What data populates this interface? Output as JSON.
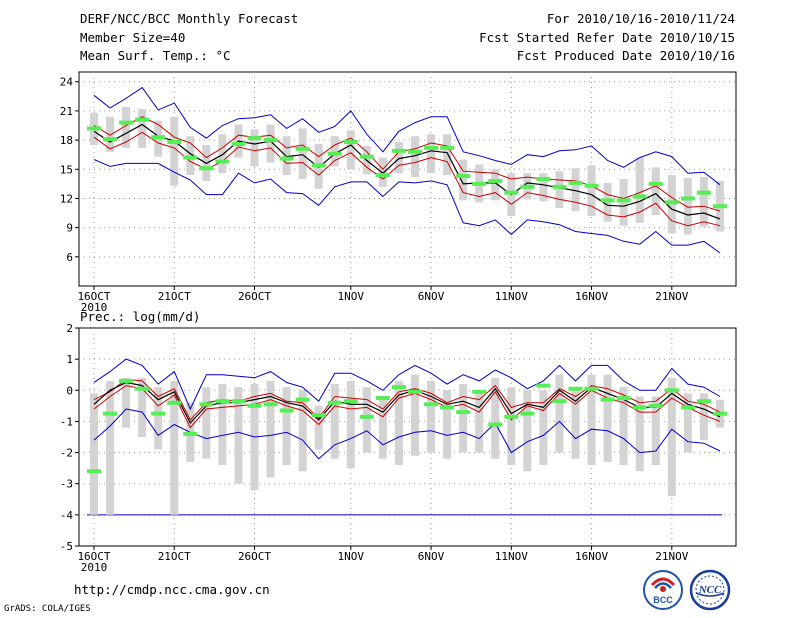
{
  "header": {
    "title": "DERF/NCC/BCC Monthly Forecast",
    "member_size": "Member Size=40",
    "variable": "Mean Surf. Temp.: °C",
    "period": "For 2010/10/16-2010/11/24",
    "start_date": "Fcst Started Refer Date 2010/10/15",
    "produced_date": "Fcst Produced Date 2010/10/16"
  },
  "precip_label": "Prec.: log(mm/d)",
  "footer": {
    "url": "http://cmdp.ncc.cma.gov.cn",
    "credit": "GrADS: COLA/IGES",
    "logo_bcc": "BCC",
    "logo_ncc": "NCC"
  },
  "colors": {
    "ensemble_max_min": "#0000cc",
    "quartile_band": "#cc0000",
    "median": "#000000",
    "member_box": "#d3d3d3",
    "marker": "#55ee55",
    "grid": "#9a9a9a",
    "baseline": "#0000cc"
  },
  "chart_data": [
    {
      "type": "line",
      "title": "Mean Surf. Temp.: °C",
      "ylabel": "°C",
      "ylim": [
        3,
        25
      ],
      "yticks": [
        6,
        9,
        12,
        15,
        18,
        21,
        24
      ],
      "xticks": [
        {
          "day": 1,
          "label": "16OCT",
          "sub": "2010"
        },
        {
          "day": 6,
          "label": "21OCT"
        },
        {
          "day": 11,
          "label": "26OCT"
        },
        {
          "day": 17,
          "label": "1NOV"
        },
        {
          "day": 22,
          "label": "6NOV"
        },
        {
          "day": 27,
          "label": "11NOV"
        },
        {
          "day": 32,
          "label": "16NOV"
        },
        {
          "day": 37,
          "label": "21NOV"
        }
      ],
      "x_days": [
        1,
        2,
        3,
        4,
        5,
        6,
        7,
        8,
        9,
        10,
        11,
        12,
        13,
        14,
        15,
        16,
        17,
        18,
        19,
        20,
        21,
        22,
        23,
        24,
        25,
        26,
        27,
        28,
        29,
        30,
        31,
        32,
        33,
        34,
        35,
        36,
        37,
        38,
        39,
        40
      ],
      "series": [
        {
          "name": "max",
          "values": [
            22.6,
            21.3,
            22.3,
            23.4,
            21.1,
            21.8,
            19.3,
            18.2,
            19.5,
            20.2,
            20.3,
            20.6,
            19.2,
            20.2,
            18.8,
            19.4,
            21.0,
            18.6,
            16.8,
            18.9,
            19.8,
            20.4,
            20.4,
            16.8,
            16.4,
            15.9,
            15.5,
            16.5,
            16.3,
            16.9,
            17.0,
            17.4,
            15.9,
            15.2,
            16.2,
            16.8,
            16.3,
            14.6,
            14.7,
            13.4
          ]
        },
        {
          "name": "upper_quartile",
          "values": [
            19.5,
            18.5,
            19.5,
            20.4,
            19.6,
            18.3,
            17.7,
            16.2,
            17.2,
            18.5,
            18.3,
            18.5,
            17.2,
            17.5,
            16.3,
            17.5,
            18.2,
            16.8,
            15.0,
            16.8,
            17.1,
            17.7,
            17.4,
            14.8,
            14.7,
            14.6,
            14.0,
            14.2,
            14.0,
            13.9,
            13.8,
            13.3,
            12.4,
            12.0,
            12.6,
            13.3,
            12.1,
            11.1,
            11.2,
            10.7
          ]
        },
        {
          "name": "median",
          "values": [
            18.9,
            17.8,
            18.7,
            19.6,
            18.4,
            17.9,
            16.6,
            15.6,
            16.5,
            17.9,
            17.6,
            17.9,
            16.3,
            16.5,
            15.2,
            16.6,
            17.5,
            15.9,
            14.6,
            16.1,
            16.4,
            16.9,
            16.7,
            13.5,
            13.6,
            13.6,
            12.4,
            13.6,
            13.4,
            13.1,
            12.8,
            12.4,
            11.3,
            11.2,
            11.7,
            12.5,
            10.9,
            10.3,
            10.5,
            9.9
          ]
        },
        {
          "name": "lower_quartile",
          "values": [
            18.3,
            17.1,
            17.8,
            18.8,
            17.7,
            17.2,
            15.8,
            15.0,
            15.8,
            17.3,
            16.9,
            17.2,
            15.6,
            15.7,
            14.4,
            15.9,
            16.7,
            15.2,
            14.0,
            15.4,
            15.7,
            16.2,
            15.8,
            12.6,
            12.2,
            12.6,
            11.4,
            12.6,
            12.3,
            11.9,
            11.6,
            11.2,
            10.3,
            10.1,
            10.6,
            11.5,
            9.7,
            9.2,
            9.6,
            9.2
          ]
        },
        {
          "name": "min",
          "values": [
            16.0,
            15.3,
            15.6,
            15.6,
            15.6,
            14.7,
            13.9,
            12.4,
            12.4,
            14.6,
            13.6,
            14.0,
            12.6,
            12.5,
            11.3,
            13.2,
            13.7,
            13.7,
            12.2,
            13.7,
            13.6,
            13.8,
            13.4,
            9.5,
            9.2,
            9.8,
            8.3,
            9.8,
            9.6,
            9.3,
            8.6,
            8.4,
            8.2,
            7.6,
            7.3,
            8.6,
            7.2,
            7.2,
            7.6,
            6.4
          ]
        },
        {
          "name": "box_top",
          "values": [
            20.8,
            20.4,
            21.4,
            21.2,
            20.0,
            20.4,
            18.4,
            17.5,
            18.6,
            19.6,
            19.1,
            19.6,
            18.4,
            19.2,
            17.6,
            18.4,
            19.0,
            17.4,
            16.2,
            17.8,
            18.4,
            18.6,
            18.6,
            16.0,
            15.5,
            15.0,
            14.6,
            14.6,
            14.6,
            14.8,
            15.1,
            15.4,
            13.6,
            14.0,
            16.2,
            15.2,
            14.4,
            14.1,
            14.2,
            13.8
          ]
        },
        {
          "name": "box_bottom",
          "values": [
            17.5,
            16.8,
            17.2,
            17.2,
            16.3,
            13.3,
            14.4,
            13.8,
            14.6,
            16.2,
            15.3,
            15.7,
            14.4,
            14.0,
            13.0,
            15.3,
            15.0,
            14.5,
            13.2,
            14.6,
            14.2,
            14.6,
            14.4,
            11.8,
            11.6,
            11.8,
            10.2,
            11.9,
            11.7,
            11.0,
            10.7,
            10.2,
            9.6,
            9.2,
            9.5,
            10.3,
            8.4,
            8.3,
            9.1,
            8.6
          ]
        },
        {
          "name": "markers",
          "values": [
            19.2,
            18.1,
            19.8,
            20.1,
            18.3,
            17.8,
            16.2,
            15.1,
            15.8,
            17.6,
            18.2,
            18.0,
            16.1,
            17.1,
            15.4,
            16.6,
            17.8,
            16.3,
            14.4,
            16.9,
            16.8,
            17.2,
            17.2,
            14.3,
            13.5,
            13.8,
            12.6,
            13.2,
            14.0,
            13.2,
            13.6,
            13.3,
            11.8,
            11.8,
            12.2,
            13.5,
            11.6,
            12.0,
            12.6,
            11.2
          ]
        }
      ]
    },
    {
      "type": "line",
      "title": "Prec.: log(mm/d)",
      "ylabel": "log(mm/d)",
      "ylim": [
        -5,
        2
      ],
      "yticks": [
        -5,
        -4,
        -3,
        -2,
        -1,
        0,
        1,
        2
      ],
      "xticks": [
        {
          "day": 1,
          "label": "16OCT",
          "sub": "2010"
        },
        {
          "day": 6,
          "label": "21OCT"
        },
        {
          "day": 11,
          "label": "26OCT"
        },
        {
          "day": 17,
          "label": "1NOV"
        },
        {
          "day": 22,
          "label": "6NOV"
        },
        {
          "day": 27,
          "label": "11NOV"
        },
        {
          "day": 32,
          "label": "16NOV"
        },
        {
          "day": 37,
          "label": "21NOV"
        }
      ],
      "x_days": [
        1,
        2,
        3,
        4,
        5,
        6,
        7,
        8,
        9,
        10,
        11,
        12,
        13,
        14,
        15,
        16,
        17,
        18,
        19,
        20,
        21,
        22,
        23,
        24,
        25,
        26,
        27,
        28,
        29,
        30,
        31,
        32,
        33,
        34,
        35,
        36,
        37,
        38,
        39,
        40
      ],
      "baseline": -4,
      "series": [
        {
          "name": "max",
          "values": [
            0.25,
            0.6,
            1.0,
            0.8,
            0.2,
            0.6,
            -0.6,
            0.5,
            0.5,
            0.45,
            0.4,
            0.6,
            0.25,
            0.1,
            -0.35,
            0.55,
            0.55,
            0.3,
            0.0,
            0.5,
            0.8,
            0.55,
            0.2,
            0.5,
            0.3,
            0.65,
            0.4,
            0.05,
            0.3,
            0.8,
            0.3,
            0.8,
            0.8,
            0.3,
            0.0,
            0.0,
            0.7,
            0.2,
            0.1,
            -0.2
          ]
        },
        {
          "name": "upper_quartile",
          "values": [
            -0.3,
            -0.05,
            0.35,
            0.3,
            -0.2,
            0.05,
            -0.95,
            -0.4,
            -0.3,
            -0.35,
            -0.2,
            -0.1,
            -0.35,
            -0.4,
            -0.9,
            -0.2,
            -0.25,
            -0.3,
            -0.6,
            -0.05,
            0.05,
            -0.1,
            -0.4,
            -0.2,
            -0.3,
            0.15,
            -0.55,
            -0.4,
            -0.4,
            0.05,
            -0.2,
            0.15,
            0.05,
            -0.15,
            -0.4,
            -0.35,
            0.05,
            -0.35,
            -0.45,
            -0.7
          ]
        },
        {
          "name": "median",
          "values": [
            -0.45,
            0.0,
            0.25,
            0.15,
            -0.3,
            -0.05,
            -1.05,
            -0.5,
            -0.4,
            -0.4,
            -0.3,
            -0.2,
            -0.4,
            -0.5,
            -0.95,
            -0.35,
            -0.45,
            -0.45,
            -0.7,
            -0.15,
            0.0,
            -0.2,
            -0.45,
            -0.35,
            -0.55,
            0.05,
            -0.75,
            -0.45,
            -0.55,
            0.0,
            -0.35,
            0.1,
            -0.1,
            -0.3,
            -0.55,
            -0.55,
            -0.1,
            -0.45,
            -0.6,
            -0.85
          ]
        },
        {
          "name": "lower_quartile",
          "values": [
            -0.6,
            -0.2,
            0.15,
            0.05,
            -0.5,
            -0.15,
            -1.2,
            -0.6,
            -0.55,
            -0.5,
            -0.45,
            -0.3,
            -0.5,
            -0.65,
            -1.1,
            -0.5,
            -0.6,
            -0.55,
            -0.85,
            -0.25,
            -0.1,
            -0.3,
            -0.55,
            -0.45,
            -0.7,
            -0.05,
            -0.95,
            -0.5,
            -0.65,
            -0.1,
            -0.45,
            0.0,
            -0.25,
            -0.4,
            -0.7,
            -0.7,
            -0.25,
            -0.55,
            -0.8,
            -1.0
          ]
        },
        {
          "name": "min",
          "values": [
            -1.6,
            -1.15,
            -0.6,
            -0.7,
            -1.45,
            -1.1,
            -1.35,
            -1.55,
            -1.45,
            -1.35,
            -1.5,
            -1.45,
            -1.35,
            -1.6,
            -2.2,
            -1.75,
            -1.55,
            -1.3,
            -1.75,
            -1.5,
            -1.35,
            -1.3,
            -1.45,
            -1.35,
            -1.55,
            -1.05,
            -2.0,
            -1.65,
            -1.45,
            -1.0,
            -1.55,
            -1.25,
            -1.3,
            -1.55,
            -2.0,
            -1.95,
            -1.25,
            -1.65,
            -1.7,
            -1.95
          ]
        },
        {
          "name": "box_top",
          "values": [
            -0.1,
            0.3,
            0.4,
            0.4,
            0.1,
            0.3,
            -0.4,
            0.1,
            0.2,
            0.1,
            0.2,
            0.3,
            0.1,
            0.0,
            -0.5,
            0.2,
            0.3,
            0.1,
            -0.3,
            0.3,
            0.5,
            0.3,
            0.0,
            0.2,
            0.0,
            0.4,
            0.1,
            0.0,
            0.0,
            0.5,
            0.1,
            0.5,
            0.5,
            0.1,
            -0.2,
            -0.2,
            0.4,
            -0.1,
            -0.1,
            -0.3
          ]
        },
        {
          "name": "box_bottom",
          "values": [
            -4.0,
            -4.0,
            -1.2,
            -1.5,
            -1.9,
            -4.0,
            -2.3,
            -2.2,
            -2.4,
            -3.0,
            -3.2,
            -2.8,
            -2.4,
            -2.6,
            -1.9,
            -2.2,
            -2.5,
            -2.0,
            -2.2,
            -2.4,
            -2.1,
            -2.0,
            -2.2,
            -2.0,
            -2.0,
            -2.2,
            -2.4,
            -2.6,
            -2.4,
            -2.0,
            -2.2,
            -2.4,
            -2.3,
            -2.4,
            -2.6,
            -2.4,
            -3.4,
            -2.0,
            -1.6,
            -1.2
          ]
        },
        {
          "name": "markers",
          "values": [
            -2.6,
            -0.75,
            0.3,
            0.05,
            -0.75,
            -0.4,
            -1.4,
            -0.45,
            -0.35,
            -0.35,
            -0.5,
            -0.45,
            -0.65,
            -0.3,
            -0.8,
            -0.4,
            -0.35,
            -0.85,
            -0.25,
            0.1,
            -0.05,
            -0.45,
            -0.55,
            -0.7,
            -0.05,
            -1.1,
            -0.85,
            -0.75,
            0.15,
            -0.35,
            0.05,
            0.05,
            -0.3,
            -0.25,
            -0.55,
            -0.5,
            0.0,
            -0.55,
            -0.35,
            -0.75
          ]
        }
      ]
    }
  ]
}
